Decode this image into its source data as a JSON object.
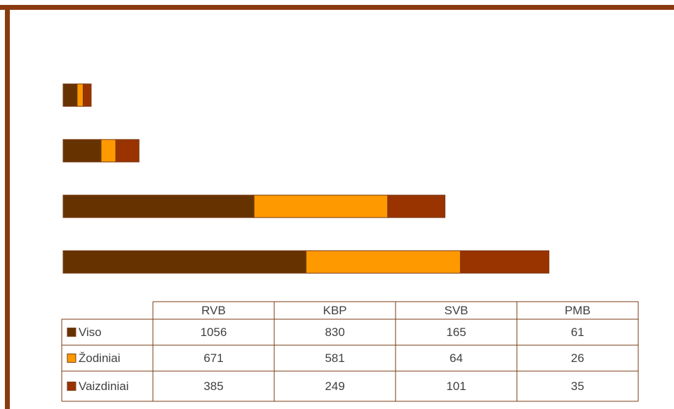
{
  "chart_data": {
    "type": "stacked-bar-horizontal",
    "categories": [
      "RVB",
      "KBP",
      "SVB",
      "PMB"
    ],
    "series": [
      {
        "name": "Viso",
        "color": "#663300",
        "values": [
          1056,
          830,
          165,
          61
        ]
      },
      {
        "name": "Žodiniai",
        "color": "#ff9900",
        "values": [
          671,
          581,
          64,
          26
        ]
      },
      {
        "name": "Vaizdiniai",
        "color": "#993300",
        "values": [
          385,
          249,
          101,
          35
        ]
      }
    ],
    "xlim": [
      0,
      2500
    ]
  }
}
